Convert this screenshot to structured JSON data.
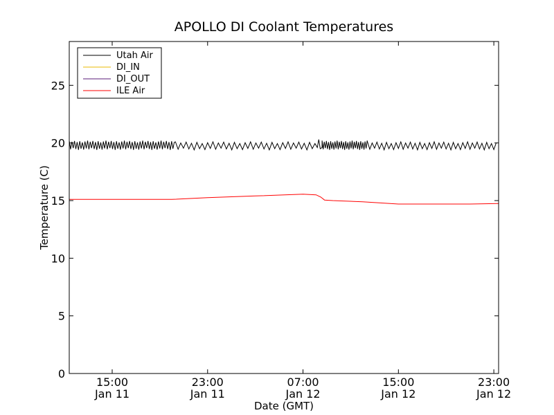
{
  "chart_data": {
    "type": "line",
    "title": "APOLLO DI Coolant Temperatures",
    "xlabel": "Date (GMT)",
    "ylabel": "Temperature (C)",
    "x_unit": "hours since Jan 11 00:00 GMT",
    "xlim": [
      11.4,
      47.4
    ],
    "ylim": [
      0,
      28.8
    ],
    "yticks": [
      0,
      5,
      10,
      15,
      20,
      25
    ],
    "xticks": [
      {
        "value": 15,
        "time": "15:00",
        "date": "Jan 11"
      },
      {
        "value": 23,
        "time": "23:00",
        "date": "Jan 11"
      },
      {
        "value": 31,
        "time": "07:00",
        "date": "Jan 12"
      },
      {
        "value": 39,
        "time": "15:00",
        "date": "Jan 12"
      },
      {
        "value": 47,
        "time": "23:00",
        "date": "Jan 12"
      }
    ],
    "legend": {
      "location": "upper-left",
      "entries": [
        {
          "label": "Utah Air",
          "color": "#000000"
        },
        {
          "label": "DI_IN",
          "color": "#e8b800"
        },
        {
          "label": "DI_OUT",
          "color": "#5a1a7a"
        },
        {
          "label": "ILE Air",
          "color": "#ff0000"
        }
      ]
    },
    "series": [
      {
        "name": "Utah Air",
        "color": "#000000",
        "segments": [
          {
            "x_start": 11.4,
            "x_end": 20.3,
            "mean": 19.8,
            "amplitude": 0.4,
            "period": 0.22
          },
          {
            "x_start": 20.3,
            "x_end": 32.2,
            "mean": 19.75,
            "amplitude": 0.35,
            "period": 0.45
          },
          {
            "x_start": 32.2,
            "x_end": 32.6,
            "spike": 20.3
          },
          {
            "x_start": 32.6,
            "x_end": 36.4,
            "mean": 19.8,
            "amplitude": 0.4,
            "period": 0.18
          },
          {
            "x_start": 36.4,
            "x_end": 47.4,
            "mean": 19.75,
            "amplitude": 0.35,
            "period": 0.4
          }
        ]
      },
      {
        "name": "ILE Air",
        "color": "#ff0000",
        "x": [
          11.4,
          15,
          20,
          23,
          27,
          31,
          32.1,
          32.5,
          32.8,
          33.5,
          36,
          39,
          42,
          45,
          47.4
        ],
        "y": [
          15.1,
          15.1,
          15.1,
          15.25,
          15.4,
          15.55,
          15.5,
          15.3,
          15.05,
          15.0,
          14.9,
          14.7,
          14.7,
          14.7,
          14.75
        ]
      }
    ]
  }
}
